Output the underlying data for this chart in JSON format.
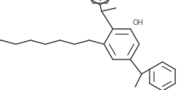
{
  "bg_color": "#ffffff",
  "line_color": "#555555",
  "line_width": 1.1,
  "fig_width": 2.4,
  "fig_height": 1.13,
  "dpi": 100,
  "xlim": [
    0,
    240
  ],
  "ylim": [
    0,
    113
  ]
}
